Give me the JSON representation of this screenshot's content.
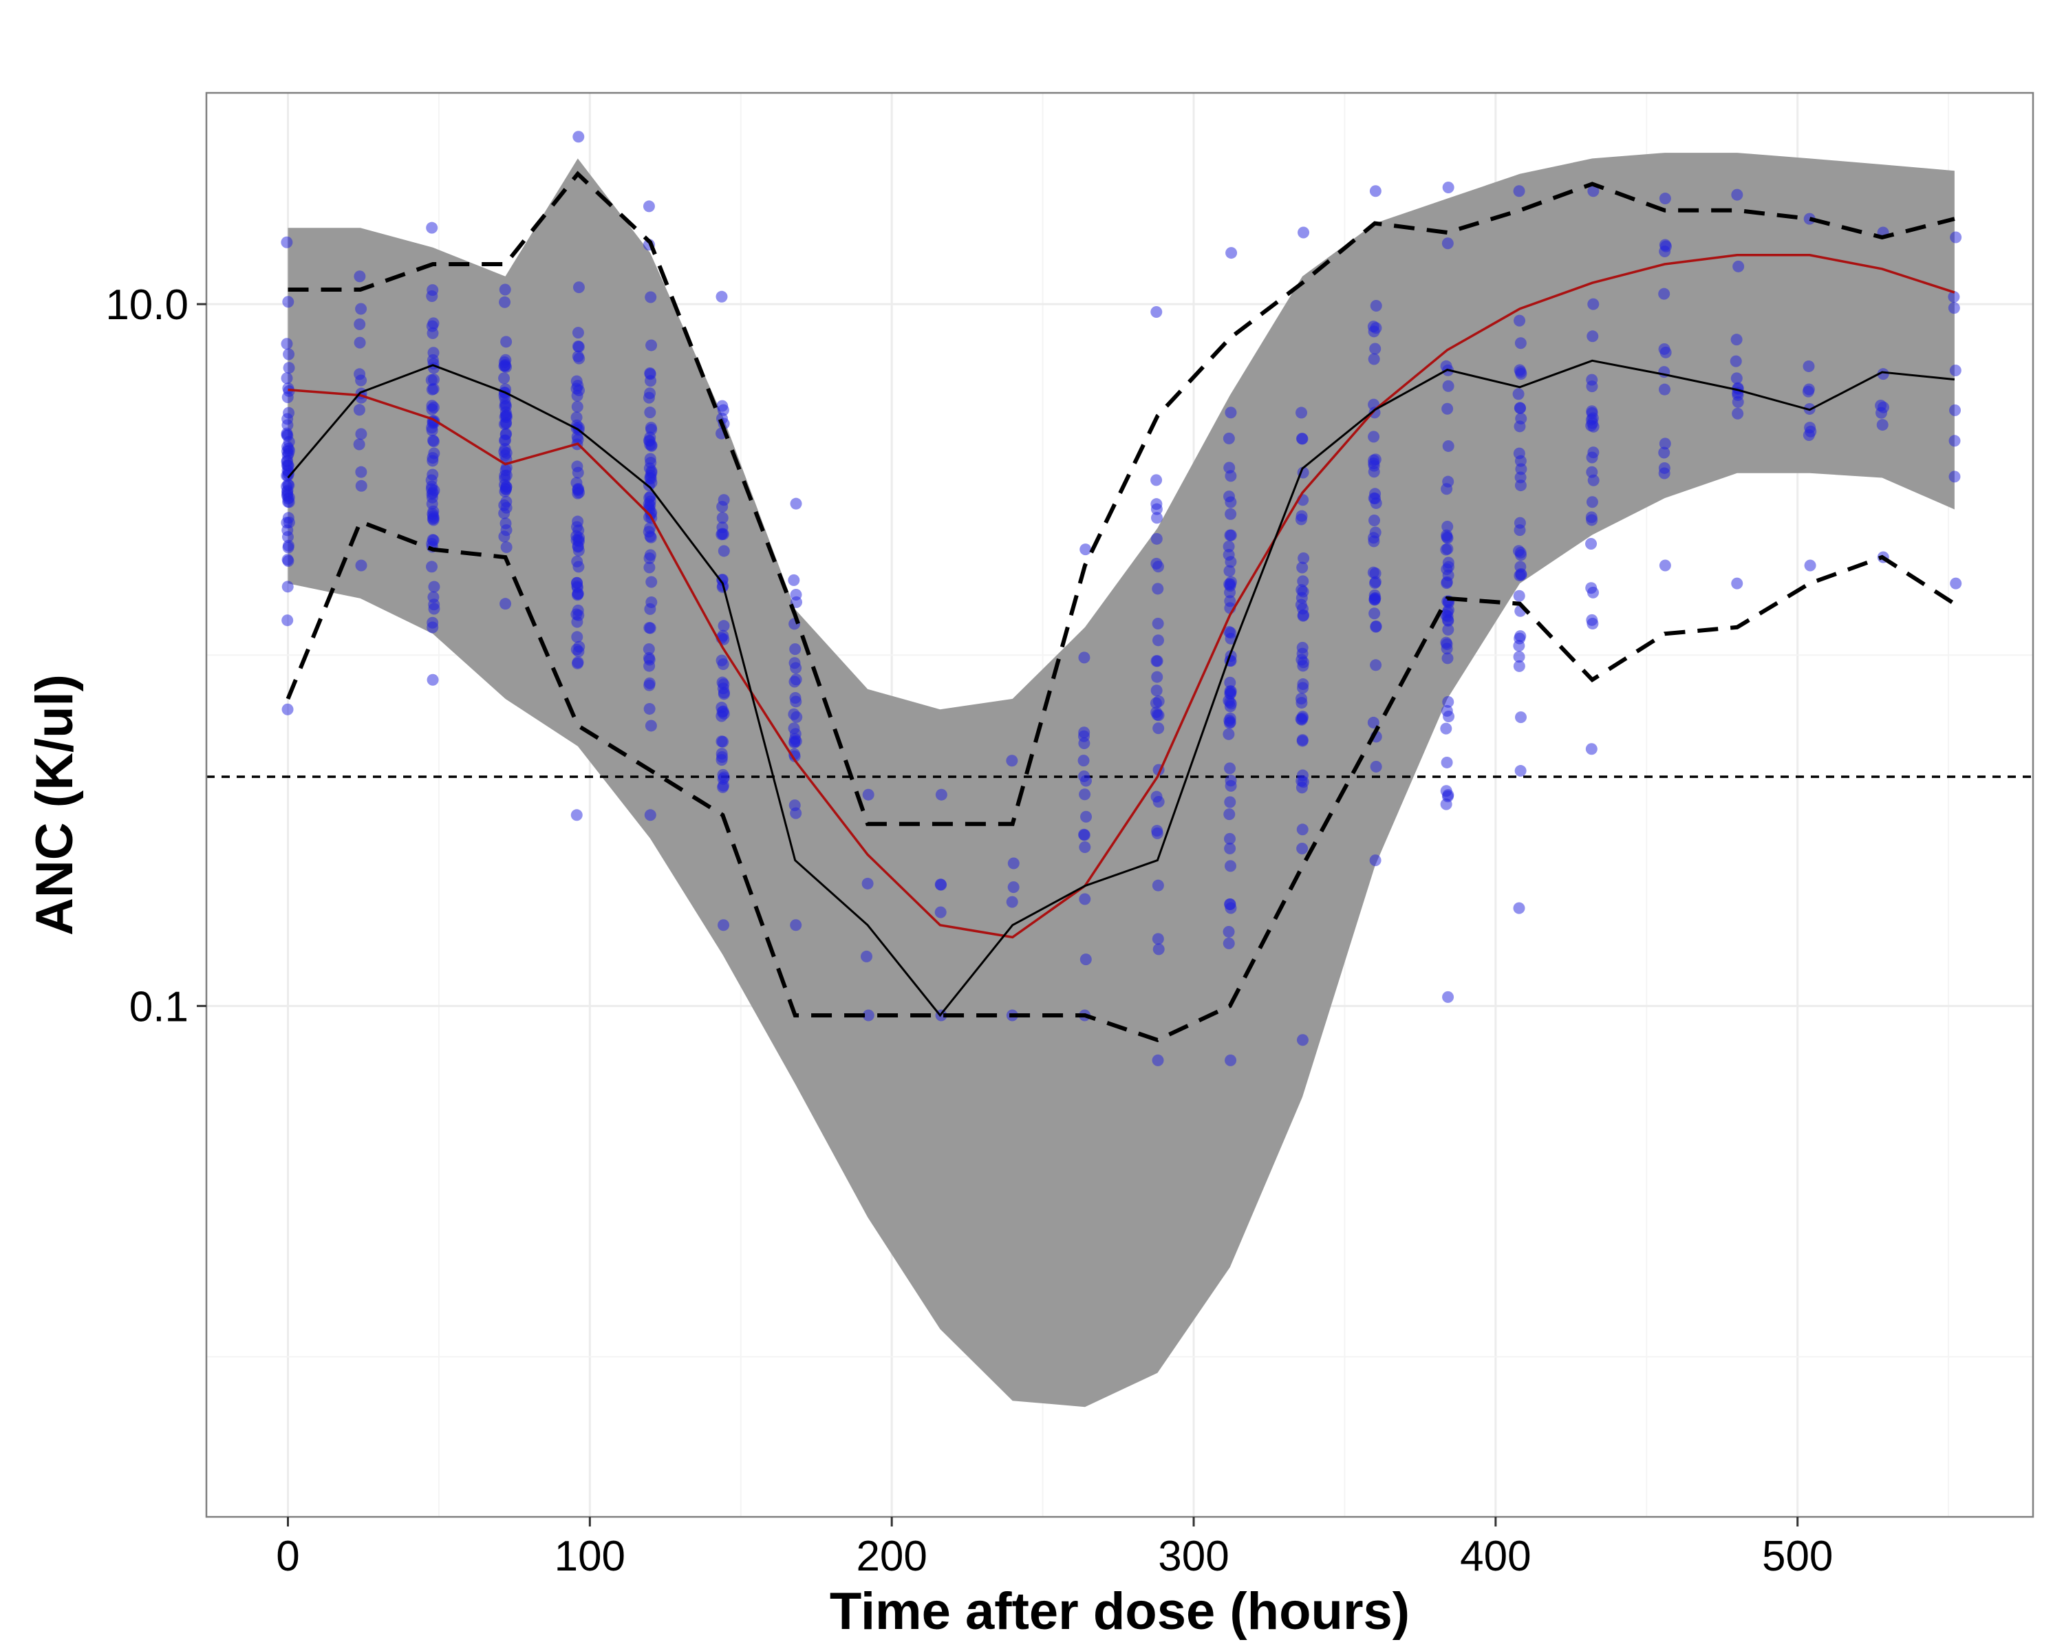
{
  "chart_data": {
    "type": "line",
    "title": "",
    "xlabel": "Time after dose (hours)",
    "ylabel": "ANC (K/ul)",
    "y_scale": "log10",
    "xlim": [
      -27,
      578
    ],
    "ylim": [
      0.0035,
      40
    ],
    "x_ticks": [
      0,
      100,
      200,
      300,
      400,
      500
    ],
    "x_tick_labels": [
      "0",
      "100",
      "200",
      "300",
      "400",
      "500"
    ],
    "y_ticks": [
      0.1,
      10.0
    ],
    "y_tick_labels": [
      "0.1",
      "10.0"
    ],
    "y_minor_gridlines": [
      0.01,
      1.0
    ],
    "x_minor_gridlines": [
      50,
      150,
      250,
      350,
      450,
      550
    ],
    "grid": true,
    "reference_line_y": 0.45,
    "colors": {
      "band": "#999999",
      "points": "#2222dd",
      "median_observed": "#000000",
      "median_predicted": "#aa1111",
      "percentiles_observed": "#000000",
      "reference": "#000000",
      "grid": "#ececec",
      "frame": "#7f7f7f"
    },
    "prediction_band": {
      "x": [
        0,
        24,
        48,
        72,
        96,
        120,
        144,
        168,
        192,
        216,
        240,
        264,
        288,
        312,
        336,
        360,
        384,
        408,
        432,
        456,
        480,
        504,
        528,
        552
      ],
      "lower": [
        1.6,
        1.45,
        1.15,
        0.75,
        0.55,
        0.3,
        0.14,
        0.06,
        0.025,
        0.012,
        0.0075,
        0.0072,
        0.009,
        0.018,
        0.055,
        0.25,
        0.75,
        1.6,
        2.2,
        2.8,
        3.3,
        3.3,
        3.2,
        2.6
      ],
      "upper": [
        16.5,
        16.5,
        14.5,
        12.0,
        26.0,
        14.0,
        4.8,
        1.35,
        0.8,
        0.7,
        0.75,
        1.2,
        2.3,
        5.5,
        12.0,
        17.0,
        20.0,
        23.5,
        26.0,
        27.0,
        27.0,
        26.0,
        25.0,
        24.0
      ]
    },
    "series": [
      {
        "name": "",
        "role": "median-predicted",
        "x": [
          0,
          24,
          48,
          72,
          96,
          120,
          144,
          168,
          192,
          216,
          240,
          264,
          288,
          312,
          336,
          360,
          384,
          408,
          432,
          456,
          480,
          504,
          528,
          552
        ],
        "y": [
          5.7,
          5.5,
          4.7,
          3.5,
          4.0,
          2.5,
          1.05,
          0.5,
          0.27,
          0.17,
          0.157,
          0.22,
          0.45,
          1.3,
          2.9,
          5.0,
          7.4,
          9.7,
          11.5,
          13.0,
          13.8,
          13.8,
          12.6,
          10.8
        ]
      },
      {
        "name": "",
        "role": "median-observed",
        "x": [
          0,
          24,
          48,
          72,
          96,
          120,
          144,
          168,
          192,
          216,
          240,
          264,
          288,
          312,
          336,
          360,
          384,
          408,
          432,
          456,
          480,
          504,
          528,
          552
        ],
        "y": [
          3.2,
          5.6,
          6.7,
          5.6,
          4.4,
          3.0,
          1.6,
          0.26,
          0.17,
          0.094,
          0.17,
          0.22,
          0.26,
          1.0,
          3.4,
          5.0,
          6.5,
          5.8,
          6.9,
          6.3,
          5.7,
          5.0,
          6.4,
          6.1
        ]
      },
      {
        "name": "",
        "role": "upper-percentile-observed",
        "x": [
          0,
          24,
          48,
          72,
          96,
          120,
          144,
          168,
          192,
          216,
          240,
          264,
          288,
          312,
          336,
          360,
          384,
          408,
          432,
          456,
          480,
          504,
          528,
          552
        ],
        "y": [
          11.0,
          11.0,
          13.0,
          13.0,
          23.5,
          15.0,
          4.5,
          1.3,
          0.33,
          0.33,
          0.33,
          1.8,
          4.8,
          8.0,
          11.5,
          17.0,
          16.0,
          18.5,
          22.0,
          18.5,
          18.5,
          17.5,
          15.5,
          17.5
        ]
      },
      {
        "name": "",
        "role": "lower-percentile-observed",
        "x": [
          0,
          24,
          48,
          72,
          96,
          120,
          144,
          168,
          192,
          216,
          240,
          264,
          288,
          312,
          336,
          360,
          384,
          408,
          432,
          456,
          480,
          504,
          528,
          552
        ],
        "y": [
          0.75,
          2.4,
          2.0,
          1.9,
          0.63,
          0.47,
          0.35,
          0.094,
          0.094,
          0.094,
          0.094,
          0.094,
          0.08,
          0.1,
          0.25,
          0.6,
          1.45,
          1.4,
          0.85,
          1.15,
          1.2,
          1.6,
          1.9,
          1.4
        ]
      }
    ],
    "observations": [
      {
        "x": 0,
        "min": 0.7,
        "max": 15.0,
        "n": 55
      },
      {
        "x": 24,
        "min": 1.8,
        "max": 12.0,
        "n": 14
      },
      {
        "x": 48,
        "min": 0.85,
        "max": 16.5,
        "n": 55
      },
      {
        "x": 72,
        "min": 1.4,
        "max": 11.0,
        "n": 55
      },
      {
        "x": 96,
        "min": 0.35,
        "max": 30.0,
        "n": 60
      },
      {
        "x": 120,
        "min": 0.35,
        "max": 19.0,
        "n": 60
      },
      {
        "x": 144,
        "min": 0.17,
        "max": 10.5,
        "n": 45
      },
      {
        "x": 168,
        "min": 0.17,
        "max": 2.7,
        "n": 25
      },
      {
        "x": 192,
        "min": 0.094,
        "max": 0.4,
        "n": 4
      },
      {
        "x": 216,
        "min": 0.094,
        "max": 0.4,
        "n": 5
      },
      {
        "x": 240,
        "min": 0.094,
        "max": 0.5,
        "n": 5
      },
      {
        "x": 264,
        "min": 0.094,
        "max": 2.0,
        "n": 16
      },
      {
        "x": 288,
        "min": 0.07,
        "max": 9.5,
        "n": 30
      },
      {
        "x": 312,
        "min": 0.07,
        "max": 14.0,
        "n": 55
      },
      {
        "x": 336,
        "min": 0.08,
        "max": 16.0,
        "n": 40
      },
      {
        "x": 360,
        "min": 0.26,
        "max": 21.0,
        "n": 40
      },
      {
        "x": 384,
        "min": 0.106,
        "max": 21.5,
        "n": 45
      },
      {
        "x": 408,
        "min": 0.19,
        "max": 21.0,
        "n": 35
      },
      {
        "x": 432,
        "min": 0.54,
        "max": 21.0,
        "n": 25
      },
      {
        "x": 456,
        "min": 1.8,
        "max": 20.0,
        "n": 14
      },
      {
        "x": 480,
        "min": 1.6,
        "max": 20.5,
        "n": 12
      },
      {
        "x": 504,
        "min": 1.8,
        "max": 17.5,
        "n": 9
      },
      {
        "x": 528,
        "min": 1.9,
        "max": 16.0,
        "n": 7
      },
      {
        "x": 552,
        "min": 1.6,
        "max": 15.5,
        "n": 8
      }
    ]
  }
}
